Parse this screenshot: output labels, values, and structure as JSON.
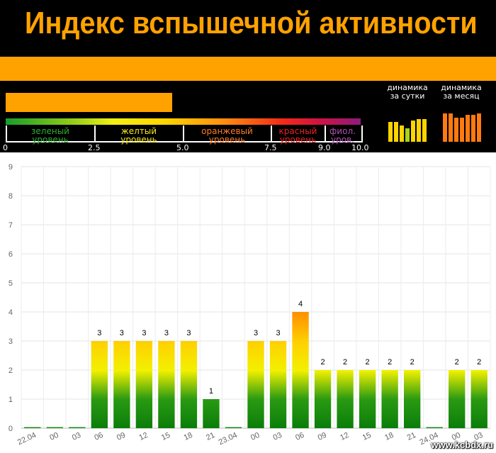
{
  "header": {
    "title": "Индекс вспышечной активности",
    "current_value": 4.7,
    "levels": [
      {
        "label": "зеленый\nуровень",
        "color": "#2bb12e"
      },
      {
        "label": "желтый\nуровень",
        "color": "#f4ea18"
      },
      {
        "label": "оранжевый\nуровень",
        "color": "#ff7b22"
      },
      {
        "label": "красный\nуровень",
        "color": "#f51f1f"
      },
      {
        "label": "фиол.\nуров.",
        "color": "#b44fb3"
      }
    ],
    "scale_ticks": [
      "0",
      "2.5",
      "5.0",
      "7.5",
      "9.0",
      "10.0"
    ],
    "dynamics_day_label": "динамика\nза сутки",
    "dynamics_month_label": "динамика\nза месяц",
    "dynamics_day_levels": [
      0.58,
      0.58,
      0.48,
      0.4,
      0.62,
      0.67,
      0.67
    ],
    "dynamics_month_levels": [
      0.83,
      0.83,
      0.7,
      0.7,
      0.79,
      0.79,
      0.83
    ],
    "accent_color": "#ffa200"
  },
  "chart_data": {
    "type": "bar",
    "categories": [
      "22.04",
      "00",
      "03",
      "06",
      "09",
      "12",
      "15",
      "18",
      "21",
      "23.04",
      "00",
      "03",
      "06",
      "09",
      "12",
      "15",
      "18",
      "21",
      "24.04",
      "00",
      "03"
    ],
    "values": [
      0,
      0,
      0,
      3,
      3,
      3,
      3,
      3,
      1,
      0,
      3,
      3,
      4,
      2,
      2,
      2,
      2,
      2,
      0,
      2,
      2
    ],
    "data_labels": [
      "",
      "",
      "",
      "3",
      "3",
      "3",
      "3",
      "3",
      "1",
      "",
      "3",
      "3",
      "4",
      "2",
      "2",
      "2",
      "2",
      "2",
      "",
      "2",
      "2"
    ],
    "ylim": [
      0,
      9
    ],
    "yticks": [
      "0",
      "1",
      "2",
      "3",
      "4",
      "5",
      "6",
      "7",
      "8",
      "9"
    ],
    "grid": true,
    "title": "",
    "xlabel": "",
    "ylabel": ""
  },
  "watermark": "www.kcbdx.ru"
}
